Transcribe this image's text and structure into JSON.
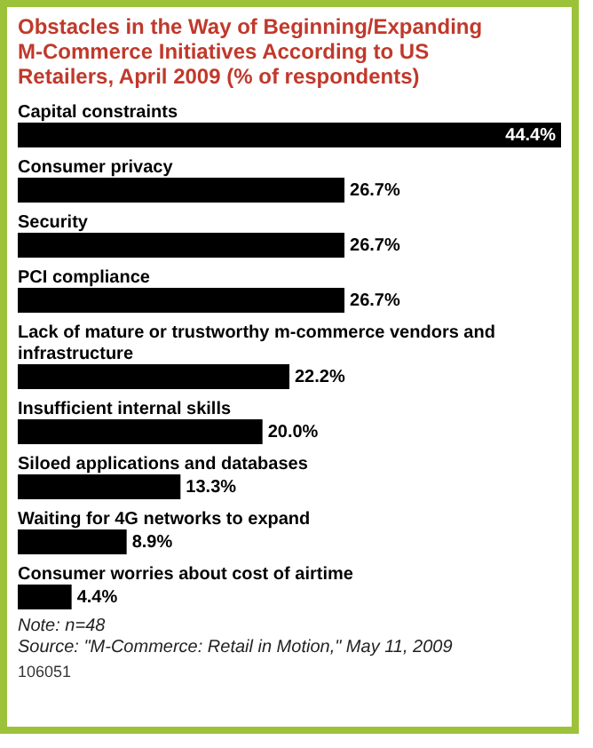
{
  "chart_data": {
    "type": "bar",
    "orientation": "horizontal",
    "title": "Obstacles in the Way of Beginning/Expanding M-Commerce Initiatives According to US Retailers, April 2009 (% of respondents)",
    "categories": [
      "Capital constraints",
      "Consumer privacy",
      "Security",
      "PCI compliance",
      "Lack of mature or trustworthy m-commerce vendors and infrastructure",
      "Insufficient internal skills",
      "Siloed applications and databases",
      "Waiting for 4G networks to expand",
      "Consumer worries about cost of airtime"
    ],
    "values": [
      44.4,
      26.7,
      26.7,
      26.7,
      22.2,
      20.0,
      13.3,
      8.9,
      4.4
    ],
    "value_labels": [
      "44.4%",
      "26.7%",
      "26.7%",
      "26.7%",
      "22.2%",
      "20.0%",
      "13.3%",
      "8.9%",
      "4.4%"
    ],
    "color": "#000000",
    "annotations": [
      "Note: n=48",
      "Source: \"M-Commerce: Retail in Motion,\" May 11, 2009",
      "106051"
    ]
  }
}
